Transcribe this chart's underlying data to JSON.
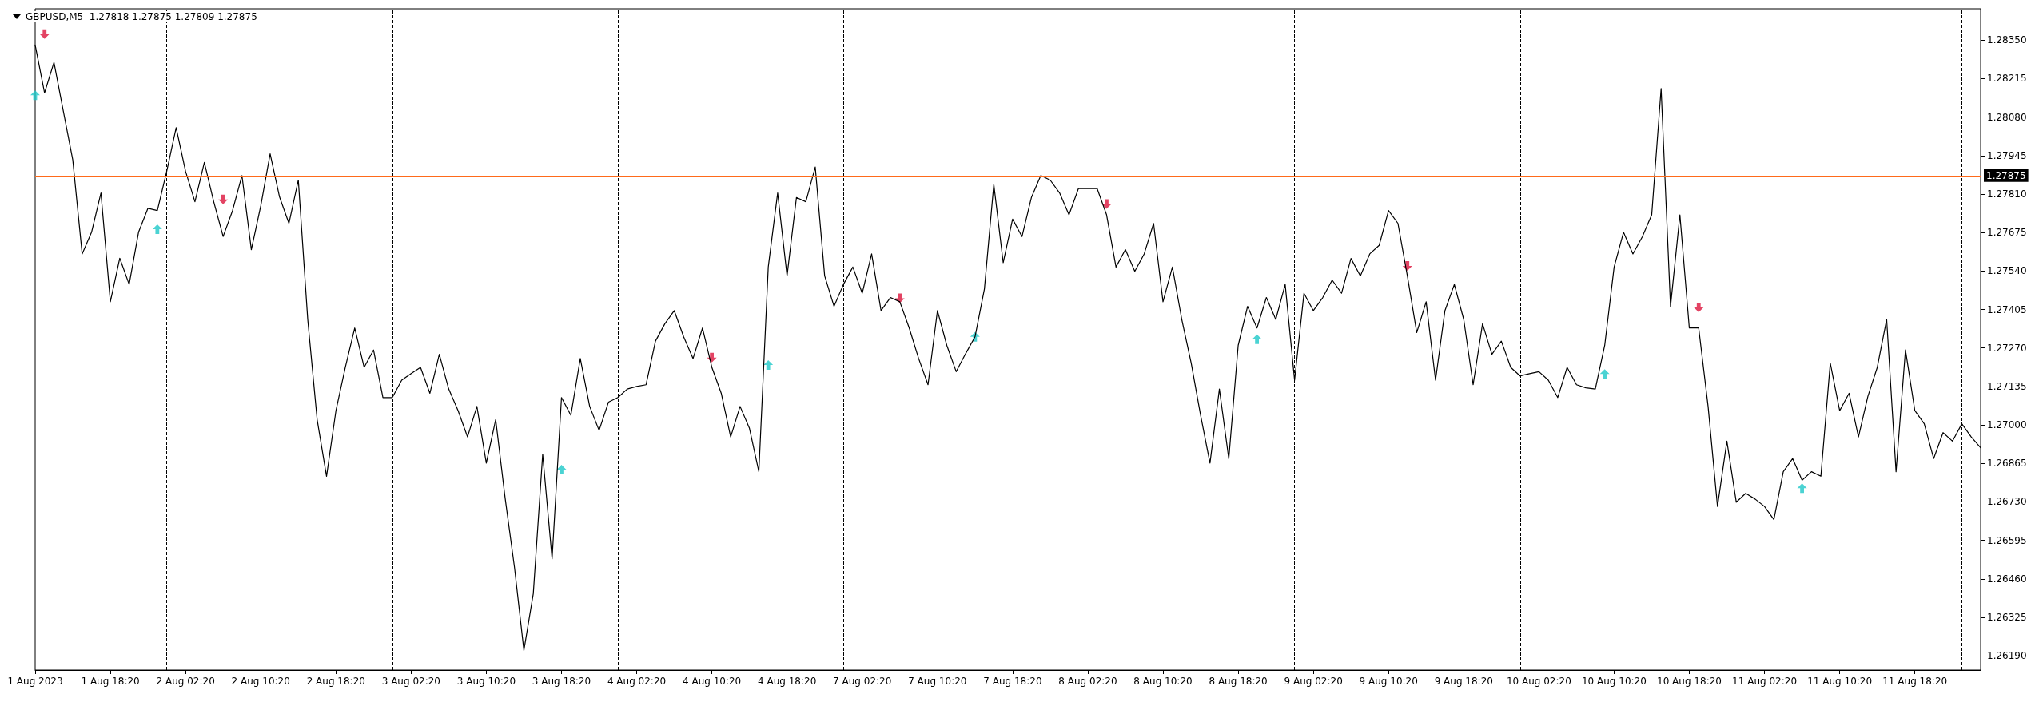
{
  "chart_data": {
    "type": "line",
    "title": "GBPUSD,M5  1.27818 1.27875 1.27809 1.27875",
    "grid": false,
    "categories": [
      "1 Aug 2023",
      null,
      null,
      null,
      null,
      null,
      null,
      null,
      "1 Aug 18:20",
      null,
      null,
      null,
      null,
      null,
      null,
      null,
      "2 Aug 02:20",
      null,
      null,
      null,
      null,
      null,
      null,
      null,
      "2 Aug 10:20",
      null,
      null,
      null,
      null,
      null,
      null,
      null,
      "2 Aug 18:20",
      null,
      null,
      null,
      null,
      null,
      null,
      null,
      "3 Aug 02:20",
      null,
      null,
      null,
      null,
      null,
      null,
      null,
      "3 Aug 10:20",
      null,
      null,
      null,
      null,
      null,
      null,
      null,
      "3 Aug 18:20",
      null,
      null,
      null,
      null,
      null,
      null,
      null,
      "4 Aug 02:20",
      null,
      null,
      null,
      null,
      null,
      null,
      null,
      "4 Aug 10:20",
      null,
      null,
      null,
      null,
      null,
      null,
      null,
      "4 Aug 18:20",
      null,
      null,
      null,
      null,
      null,
      null,
      null,
      "7 Aug 02:20",
      null,
      null,
      null,
      null,
      null,
      null,
      null,
      "7 Aug 10:20",
      null,
      null,
      null,
      null,
      null,
      null,
      null,
      "7 Aug 18:20",
      null,
      null,
      null,
      null,
      null,
      null,
      null,
      "8 Aug 02:20",
      null,
      null,
      null,
      null,
      null,
      null,
      null,
      "8 Aug 10:20",
      null,
      null,
      null,
      null,
      null,
      null,
      null,
      "8 Aug 18:20",
      null,
      null,
      null,
      null,
      null,
      null,
      null,
      "9 Aug 02:20",
      null,
      null,
      null,
      null,
      null,
      null,
      null,
      "9 Aug 10:20",
      null,
      null,
      null,
      null,
      null,
      null,
      null,
      "9 Aug 18:20",
      null,
      null,
      null,
      null,
      null,
      null,
      null,
      "10 Aug 02:20",
      null,
      null,
      null,
      null,
      null,
      null,
      null,
      "10 Aug 10:20",
      null,
      null,
      null,
      null,
      null,
      null,
      null,
      "10 Aug 18:20",
      null,
      null,
      null,
      null,
      null,
      null,
      null,
      "11 Aug 02:20",
      null,
      null,
      null,
      null,
      null,
      null,
      null,
      "11 Aug 10:20",
      null,
      null,
      null,
      null,
      null,
      null,
      null,
      "11 Aug 18:20",
      null,
      null,
      null,
      null,
      null,
      null,
      null
    ],
    "ylim": [
      1.2614,
      1.2846
    ],
    "yticks": [
      {
        "value": 1.2835,
        "label": "1.28350"
      },
      {
        "value": 1.28215,
        "label": "1.28215"
      },
      {
        "value": 1.2808,
        "label": "1.28080"
      },
      {
        "value": 1.27945,
        "label": "1.27945"
      },
      {
        "value": 1.2781,
        "label": "1.27810"
      },
      {
        "value": 1.27675,
        "label": "1.27675"
      },
      {
        "value": 1.2754,
        "label": "1.27540"
      },
      {
        "value": 1.27405,
        "label": "1.27405"
      },
      {
        "value": 1.2727,
        "label": "1.27270"
      },
      {
        "value": 1.27135,
        "label": "1.27135"
      },
      {
        "value": 1.27,
        "label": "1.27000"
      },
      {
        "value": 1.26865,
        "label": "1.26865"
      },
      {
        "value": 1.2673,
        "label": "1.26730"
      },
      {
        "value": 1.26595,
        "label": "1.26595"
      },
      {
        "value": 1.2646,
        "label": "1.26460"
      },
      {
        "value": 1.26325,
        "label": "1.26325"
      },
      {
        "value": 1.2619,
        "label": "1.26190"
      }
    ],
    "ref_lines": [
      {
        "axis": "y",
        "value": 1.27875,
        "label": "1.27875",
        "color": "#ff6a1a",
        "line_style": "solid"
      }
    ],
    "series": [
      {
        "color": "#000000",
        "marker": "none",
        "line_style": "solid",
        "values": [
          1.28333,
          1.28165,
          1.28272,
          1.281,
          1.2793,
          1.276,
          1.27676,
          1.27814,
          1.27432,
          1.27585,
          1.27493,
          1.27676,
          1.2776,
          1.27752,
          1.2789,
          1.28043,
          1.2789,
          1.27783,
          1.27921,
          1.27783,
          1.27661,
          1.27752,
          1.27875,
          1.27615,
          1.27768,
          1.27951,
          1.278,
          1.27707,
          1.27859,
          1.2737,
          1.27019,
          1.2682,
          1.2705,
          1.27202,
          1.2734,
          1.27202,
          1.27263,
          1.27096,
          1.27096,
          1.27157,
          1.2718,
          1.27202,
          1.27111,
          1.27248,
          1.27126,
          1.2705,
          1.26958,
          1.27065,
          1.26866,
          1.27019,
          1.26744,
          1.265,
          1.26209,
          1.26408,
          1.26897,
          1.2653,
          1.27096,
          1.27034,
          1.27233,
          1.27065,
          1.26981,
          1.2708,
          1.27096,
          1.27126,
          1.27135,
          1.27141,
          1.27294,
          1.27355,
          1.27401,
          1.27309,
          1.27233,
          1.2734,
          1.27202,
          1.27111,
          1.26958,
          1.27065,
          1.26988,
          1.26836,
          1.27554,
          1.27814,
          1.27523,
          1.27798,
          1.27783,
          1.27905,
          1.27523,
          1.27416,
          1.27493,
          1.27554,
          1.27462,
          1.276,
          1.27401,
          1.27447,
          1.27432,
          1.2734,
          1.27233,
          1.27141,
          1.27401,
          1.27279,
          1.27187,
          1.2725,
          1.27309,
          1.27477,
          1.27844,
          1.27569,
          1.27722,
          1.27661,
          1.27798,
          1.27875,
          1.27859,
          1.27814,
          1.27737,
          1.27829,
          1.27829,
          1.27829,
          1.27737,
          1.27554,
          1.27615,
          1.27539,
          1.276,
          1.27707,
          1.27432,
          1.27554,
          1.2737,
          1.27217,
          1.27034,
          1.26866,
          1.27126,
          1.26881,
          1.27279,
          1.27416,
          1.2734,
          1.27447,
          1.2737,
          1.27493,
          1.27157,
          1.27462,
          1.27401,
          1.27447,
          1.27508,
          1.27462,
          1.27584,
          1.27523,
          1.276,
          1.2763,
          1.27752,
          1.27707,
          1.27523,
          1.27324,
          1.27432,
          1.27157,
          1.27401,
          1.27493,
          1.2737,
          1.27141,
          1.27355,
          1.27248,
          1.27294,
          1.27202,
          1.27172,
          1.2718,
          1.27187,
          1.27157,
          1.27096,
          1.27202,
          1.27141,
          1.2713,
          1.27126,
          1.27279,
          1.27554,
          1.27676,
          1.276,
          1.2766,
          1.27737,
          1.2818,
          1.27416,
          1.27737,
          1.2734,
          1.2734,
          1.27065,
          1.26714,
          1.26943,
          1.26729,
          1.2676,
          1.2674,
          1.26714,
          1.26668,
          1.26836,
          1.26882,
          1.26806,
          1.26836,
          1.2682,
          1.27217,
          1.2705,
          1.27111,
          1.26958,
          1.271,
          1.27202,
          1.2737,
          1.26836,
          1.27263,
          1.2705,
          1.27004,
          1.26882,
          1.26973,
          1.26943,
          1.27004,
          1.26958,
          1.2692
        ]
      },
      {
        "type": "scatter",
        "color": "#dc143c",
        "marker": "triangle-down",
        "values": [
          null,
          1.28371,
          null,
          null,
          null,
          null,
          null,
          null,
          null,
          null,
          null,
          null,
          null,
          null,
          null,
          null,
          null,
          null,
          null,
          null,
          1.27791,
          null,
          null,
          null,
          null,
          null,
          null,
          null,
          null,
          null,
          null,
          null,
          null,
          null,
          null,
          null,
          null,
          null,
          null,
          null,
          null,
          null,
          null,
          null,
          null,
          null,
          null,
          null,
          null,
          null,
          null,
          null,
          null,
          null,
          null,
          null,
          null,
          null,
          null,
          null,
          null,
          null,
          null,
          null,
          null,
          null,
          null,
          null,
          null,
          null,
          null,
          null,
          1.27236,
          null,
          null,
          null,
          null,
          null,
          null,
          null,
          null,
          null,
          null,
          null,
          null,
          null,
          null,
          null,
          null,
          null,
          null,
          null,
          1.27444,
          null,
          null,
          null,
          null,
          null,
          null,
          null,
          null,
          null,
          null,
          null,
          null,
          null,
          null,
          null,
          null,
          null,
          null,
          null,
          null,
          null,
          1.27775,
          null,
          null,
          null,
          null,
          null,
          null,
          null,
          null,
          null,
          null,
          null,
          null,
          null,
          null,
          null,
          null,
          null,
          null,
          null,
          null,
          null,
          null,
          null,
          null,
          null,
          null,
          null,
          null,
          null,
          null,
          null,
          1.27558,
          null,
          null,
          null,
          null,
          null,
          null,
          null,
          null,
          null,
          null,
          null,
          null,
          null,
          null,
          null,
          null,
          null,
          null,
          null,
          null,
          null,
          null,
          null,
          null,
          null,
          null,
          null,
          null,
          null,
          null,
          1.27412,
          null,
          null,
          null,
          null,
          null,
          null,
          null,
          null,
          null,
          null,
          null,
          null,
          null,
          null,
          null,
          null,
          null,
          null,
          null,
          null,
          null,
          null,
          null,
          null,
          null,
          null,
          null,
          null,
          null,
          null
        ]
      },
      {
        "type": "scatter",
        "color": "#1ec8c8",
        "marker": "triangle",
        "values": [
          1.28157,
          null,
          null,
          null,
          null,
          null,
          null,
          null,
          null,
          null,
          null,
          null,
          null,
          1.27687,
          null,
          null,
          null,
          null,
          null,
          null,
          null,
          null,
          null,
          null,
          null,
          null,
          null,
          null,
          null,
          null,
          null,
          null,
          null,
          null,
          null,
          null,
          null,
          null,
          null,
          null,
          null,
          null,
          null,
          null,
          null,
          null,
          null,
          null,
          null,
          null,
          null,
          null,
          null,
          null,
          null,
          null,
          1.26843,
          null,
          null,
          null,
          null,
          null,
          null,
          null,
          null,
          null,
          null,
          null,
          null,
          null,
          null,
          null,
          null,
          null,
          null,
          null,
          null,
          null,
          1.2721,
          null,
          null,
          null,
          null,
          null,
          null,
          null,
          null,
          null,
          null,
          null,
          null,
          null,
          null,
          null,
          null,
          null,
          null,
          null,
          null,
          null,
          1.27309,
          null,
          null,
          null,
          null,
          null,
          null,
          null,
          null,
          null,
          null,
          null,
          null,
          null,
          null,
          null,
          null,
          null,
          null,
          null,
          null,
          null,
          null,
          null,
          null,
          null,
          null,
          null,
          null,
          null,
          1.27301,
          null,
          null,
          null,
          null,
          null,
          null,
          null,
          null,
          null,
          null,
          null,
          null,
          null,
          null,
          null,
          null,
          null,
          null,
          null,
          null,
          null,
          null,
          null,
          null,
          null,
          null,
          null,
          null,
          null,
          null,
          null,
          null,
          null,
          null,
          null,
          null,
          1.27179,
          null,
          null,
          null,
          null,
          null,
          null,
          null,
          null,
          null,
          null,
          null,
          null,
          null,
          null,
          null,
          null,
          null,
          null,
          null,
          null,
          1.26778,
          null,
          null,
          null,
          null,
          null,
          null,
          null,
          null,
          null,
          null,
          null,
          null,
          null,
          null,
          null,
          null,
          null,
          null,
          null
        ]
      }
    ]
  }
}
